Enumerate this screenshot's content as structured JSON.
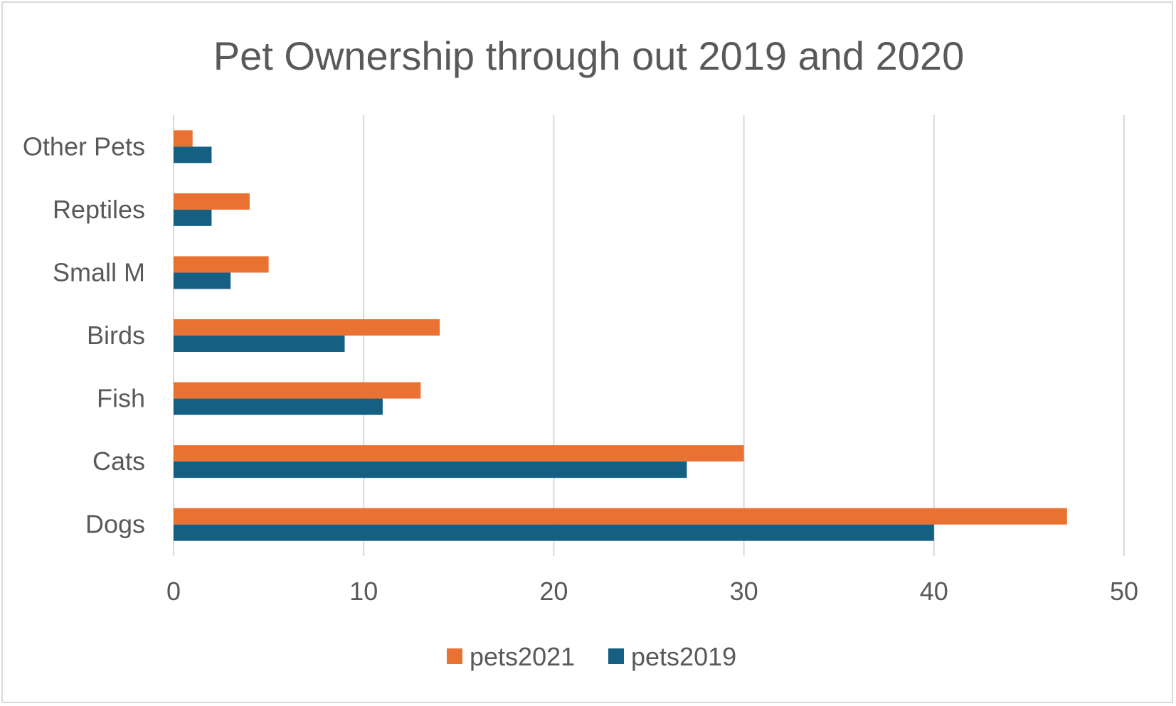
{
  "chart_data": {
    "type": "bar",
    "orientation": "horizontal",
    "title": "Pet Ownership through out 2019 and 2020",
    "categories": [
      "Other Pets",
      "Reptiles",
      "Small M",
      "Birds",
      "Fish",
      "Cats",
      "Dogs"
    ],
    "series": [
      {
        "name": "pets2021",
        "color": "#E97132",
        "values": [
          1,
          4,
          5,
          14,
          13,
          30,
          47
        ]
      },
      {
        "name": "pets2019",
        "color": "#156082",
        "values": [
          2,
          2,
          3,
          9,
          11,
          27,
          40
        ]
      }
    ],
    "xlim": [
      0,
      50
    ],
    "xticks": [
      0,
      10,
      20,
      30,
      40,
      50
    ],
    "grid": true,
    "legend": "bottom"
  }
}
